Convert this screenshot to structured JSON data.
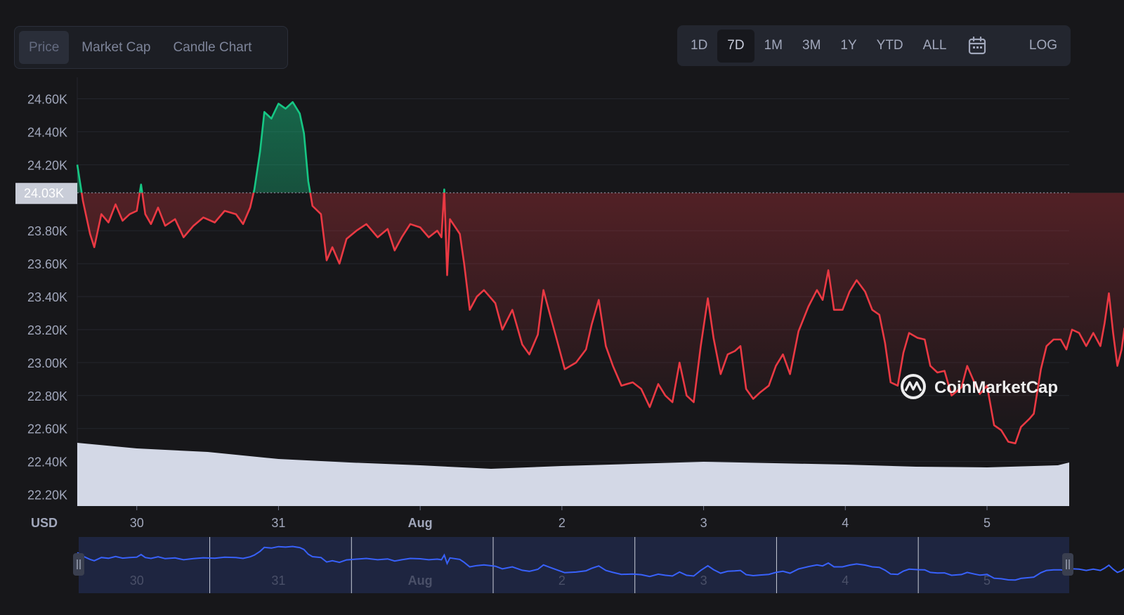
{
  "tabs": [
    "Price",
    "Market Cap",
    "Candle Chart"
  ],
  "active_tab": 0,
  "ranges": [
    "1D",
    "7D",
    "1M",
    "3M",
    "1Y",
    "YTD",
    "ALL"
  ],
  "active_range": 1,
  "calendar_icon": "calendar-icon",
  "log_label": "LOG",
  "currency_label": "USD",
  "watermark": "CoinMarketCap",
  "colors": {
    "up": "#16c784",
    "down": "#ea3943",
    "volume": "#d3d8e6",
    "navigator_line": "#3861fb",
    "background": "#17171a"
  },
  "chart_data": {
    "type": "line",
    "title": "",
    "xlabel": "",
    "ylabel": "",
    "x_ticks": [
      "30",
      "31",
      "Aug",
      "2",
      "3",
      "4",
      "5"
    ],
    "y_ticks": [
      "24.60K",
      "24.40K",
      "24.20K",
      "24.03K",
      "23.80K",
      "23.60K",
      "23.40K",
      "23.20K",
      "23.00K",
      "22.80K",
      "22.60K",
      "22.40K",
      "22.20K"
    ],
    "ylim": [
      22130,
      24730
    ],
    "reference_price": 24030,
    "reference_label": "24.03K",
    "x_range_days": [
      -0.42,
      6.58
    ],
    "grid": true,
    "series": [
      {
        "values": [
          [
            -0.42,
            24200
          ],
          [
            -0.38,
            23980
          ],
          [
            -0.33,
            23780
          ],
          [
            -0.3,
            23700
          ],
          [
            -0.25,
            23900
          ],
          [
            -0.2,
            23850
          ],
          [
            -0.15,
            23960
          ],
          [
            -0.1,
            23860
          ],
          [
            -0.05,
            23900
          ],
          [
            0.0,
            23920
          ],
          [
            0.03,
            24080
          ],
          [
            0.06,
            23900
          ],
          [
            0.1,
            23840
          ],
          [
            0.15,
            23940
          ],
          [
            0.2,
            23830
          ],
          [
            0.27,
            23870
          ],
          [
            0.33,
            23760
          ],
          [
            0.4,
            23830
          ],
          [
            0.47,
            23880
          ],
          [
            0.55,
            23850
          ],
          [
            0.62,
            23920
          ],
          [
            0.7,
            23900
          ],
          [
            0.75,
            23840
          ],
          [
            0.8,
            23940
          ],
          [
            0.83,
            24050
          ],
          [
            0.87,
            24280
          ],
          [
            0.9,
            24520
          ],
          [
            0.95,
            24480
          ],
          [
            1.0,
            24570
          ],
          [
            1.05,
            24540
          ],
          [
            1.1,
            24580
          ],
          [
            1.15,
            24510
          ],
          [
            1.18,
            24390
          ],
          [
            1.21,
            24100
          ],
          [
            1.24,
            23950
          ],
          [
            1.3,
            23900
          ],
          [
            1.34,
            23620
          ],
          [
            1.38,
            23700
          ],
          [
            1.43,
            23600
          ],
          [
            1.48,
            23750
          ],
          [
            1.55,
            23800
          ],
          [
            1.62,
            23840
          ],
          [
            1.7,
            23760
          ],
          [
            1.77,
            23810
          ],
          [
            1.82,
            23680
          ],
          [
            1.87,
            23760
          ],
          [
            1.93,
            23840
          ],
          [
            2.0,
            23820
          ],
          [
            2.06,
            23760
          ],
          [
            2.12,
            23800
          ],
          [
            2.15,
            23760
          ],
          [
            2.17,
            24050
          ],
          [
            2.19,
            23530
          ],
          [
            2.21,
            23870
          ],
          [
            2.28,
            23780
          ],
          [
            2.31,
            23600
          ],
          [
            2.35,
            23320
          ],
          [
            2.4,
            23400
          ],
          [
            2.45,
            23440
          ],
          [
            2.53,
            23360
          ],
          [
            2.58,
            23200
          ],
          [
            2.65,
            23320
          ],
          [
            2.72,
            23110
          ],
          [
            2.77,
            23050
          ],
          [
            2.83,
            23170
          ],
          [
            2.87,
            23440
          ],
          [
            2.91,
            23310
          ],
          [
            2.97,
            23120
          ],
          [
            3.02,
            22960
          ],
          [
            3.1,
            23000
          ],
          [
            3.17,
            23080
          ],
          [
            3.21,
            23230
          ],
          [
            3.26,
            23380
          ],
          [
            3.31,
            23100
          ],
          [
            3.36,
            22980
          ],
          [
            3.42,
            22860
          ],
          [
            3.5,
            22880
          ],
          [
            3.56,
            22840
          ],
          [
            3.62,
            22730
          ],
          [
            3.68,
            22870
          ],
          [
            3.73,
            22800
          ],
          [
            3.78,
            22760
          ],
          [
            3.83,
            23000
          ],
          [
            3.88,
            22800
          ],
          [
            3.93,
            22760
          ],
          [
            3.98,
            23100
          ],
          [
            4.03,
            23390
          ],
          [
            4.07,
            23150
          ],
          [
            4.12,
            22930
          ],
          [
            4.17,
            23050
          ],
          [
            4.22,
            23070
          ],
          [
            4.26,
            23100
          ],
          [
            4.3,
            22840
          ],
          [
            4.35,
            22780
          ],
          [
            4.4,
            22820
          ],
          [
            4.46,
            22860
          ],
          [
            4.51,
            22980
          ],
          [
            4.56,
            23050
          ],
          [
            4.61,
            22930
          ],
          [
            4.67,
            23190
          ],
          [
            4.74,
            23340
          ],
          [
            4.8,
            23440
          ],
          [
            4.84,
            23380
          ],
          [
            4.88,
            23560
          ],
          [
            4.92,
            23320
          ],
          [
            4.98,
            23320
          ],
          [
            5.03,
            23430
          ],
          [
            5.08,
            23500
          ],
          [
            5.14,
            23430
          ],
          [
            5.19,
            23320
          ],
          [
            5.24,
            23290
          ],
          [
            5.28,
            23120
          ],
          [
            5.32,
            22880
          ],
          [
            5.37,
            22860
          ],
          [
            5.41,
            23060
          ],
          [
            5.45,
            23180
          ],
          [
            5.51,
            23150
          ],
          [
            5.56,
            23140
          ],
          [
            5.6,
            22980
          ],
          [
            5.65,
            22940
          ],
          [
            5.7,
            22950
          ],
          [
            5.75,
            22800
          ],
          [
            5.82,
            22850
          ],
          [
            5.86,
            22980
          ],
          [
            5.91,
            22880
          ],
          [
            5.95,
            22810
          ],
          [
            6.0,
            22860
          ],
          [
            6.05,
            22620
          ],
          [
            6.1,
            22590
          ],
          [
            6.15,
            22520
          ],
          [
            6.2,
            22510
          ],
          [
            6.24,
            22610
          ],
          [
            6.3,
            22660
          ],
          [
            6.33,
            22690
          ],
          [
            6.38,
            22960
          ],
          [
            6.42,
            23100
          ],
          [
            6.47,
            23140
          ],
          [
            6.52,
            23140
          ],
          [
            6.56,
            23080
          ],
          [
            6.6,
            23200
          ],
          [
            6.65,
            23180
          ],
          [
            6.7,
            23100
          ],
          [
            6.75,
            23180
          ],
          [
            6.8,
            23100
          ],
          [
            6.83,
            23240
          ],
          [
            6.86,
            23420
          ],
          [
            6.89,
            23180
          ],
          [
            6.92,
            22980
          ],
          [
            6.95,
            23080
          ],
          [
            6.97,
            23210
          ]
        ]
      }
    ]
  }
}
